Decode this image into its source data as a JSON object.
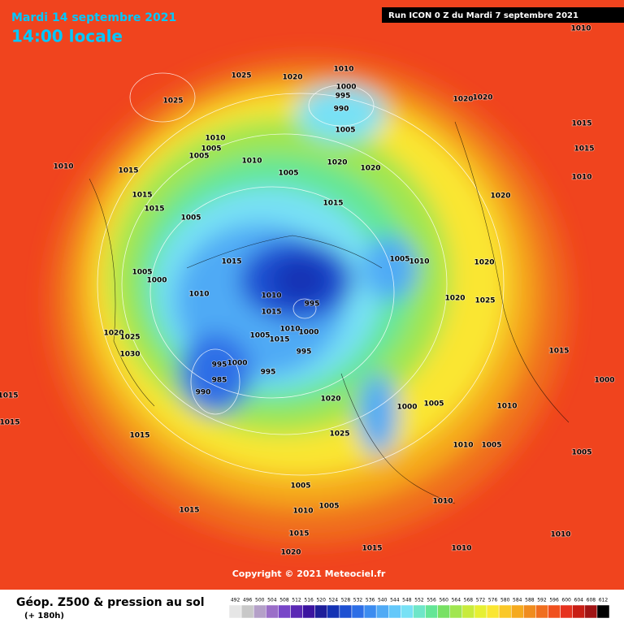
{
  "header": {
    "date": "Mardi 14 septembre 2021",
    "time": "14:00 locale",
    "run": "Run ICON 0 Z du Mardi 7 septembre 2021"
  },
  "copyright": "Copyright © 2021 Meteociel.fr",
  "footer": {
    "title": "Géop. Z500 & pression au sol",
    "lead": "(+ 180h)"
  },
  "colorbar": {
    "labels": [
      "492",
      "496",
      "500",
      "504",
      "508",
      "512",
      "516",
      "520",
      "524",
      "528",
      "532",
      "536",
      "540",
      "544",
      "548",
      "552",
      "556",
      "560",
      "564",
      "568",
      "572",
      "576",
      "580",
      "584",
      "588",
      "592",
      "596",
      "600",
      "604",
      "608",
      "612"
    ],
    "colors": [
      "#e6e6e6",
      "#c8c8c8",
      "#b4a0c8",
      "#9a6ec8",
      "#7846c8",
      "#5a28b4",
      "#3c14a0",
      "#1e1e9a",
      "#1432b4",
      "#1e50d2",
      "#2d6ee6",
      "#3c8cf0",
      "#50aaf5",
      "#64c8fa",
      "#78e1f5",
      "#6ee6c8",
      "#64e696",
      "#78e164",
      "#a0e650",
      "#c8eb3c",
      "#e6f032",
      "#fae632",
      "#fac828",
      "#f5aa1e",
      "#f08c1e",
      "#f06e1e",
      "#f0501e",
      "#e6321e",
      "#c81e14",
      "#a01414",
      "#000000"
    ]
  },
  "isobar_labels": [
    "1010",
    "1025",
    "1020",
    "1010",
    "1000",
    "995",
    "990",
    "1025",
    "1020",
    "1020",
    "1005",
    "1010",
    "1005",
    "1005",
    "1010",
    "1005",
    "1020",
    "1020",
    "1015",
    "1010",
    "1015",
    "1015",
    "1005",
    "1015",
    "1020",
    "1015",
    "1015",
    "1010",
    "1015",
    "1005",
    "1000",
    "1005",
    "1010",
    "1020",
    "1010",
    "1010",
    "995",
    "1015",
    "1020",
    "1025",
    "1005",
    "1015",
    "1000",
    "1010",
    "995",
    "995",
    "1000",
    "985",
    "990",
    "995",
    "1020",
    "1025",
    "1030",
    "1015",
    "1015",
    "1015",
    "1020",
    "1025",
    "1000",
    "1005",
    "1010",
    "1005",
    "1010",
    "1005",
    "1010",
    "1005",
    "1010",
    "1015",
    "1015",
    "1020",
    "1015",
    "1010",
    "1010",
    "1005",
    "1000",
    "1015"
  ]
}
